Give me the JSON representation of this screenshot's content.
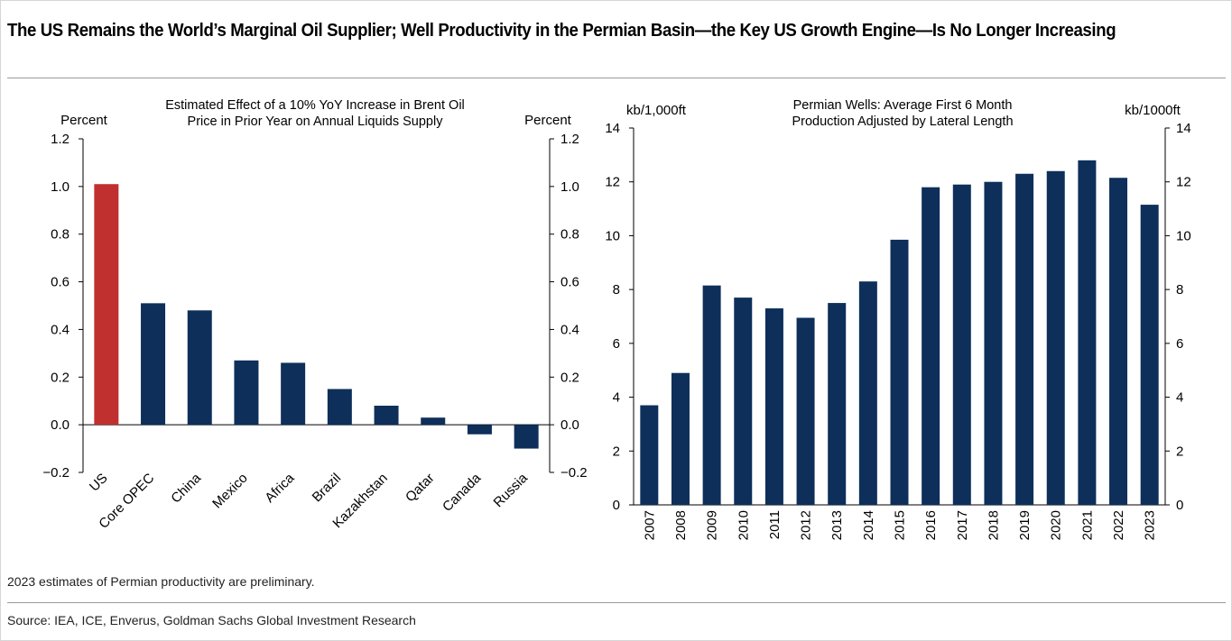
{
  "figure": {
    "title": "The US Remains the World’s Marginal Oil Supplier; Well Productivity in the Permian Basin—the Key US Growth Engine—Is No Longer Increasing",
    "note": "2023 estimates of Permian productivity are preliminary.",
    "source": "Source: IEA, ICE, Enverus, Goldman Sachs Global Investment Research"
  },
  "colors": {
    "highlight": "#c0302f",
    "bar": "#0d2f5a",
    "axis": "#000000",
    "text": "#000000"
  },
  "chart_data": [
    {
      "type": "bar",
      "title_lines": [
        "Estimated Effect of a 10% YoY Increase in Brent Oil",
        "Price in Prior Year on Annual Liquids Supply"
      ],
      "ylabel_left": "Percent",
      "ylabel_right": "Percent",
      "categories": [
        "US",
        "Core OPEC",
        "China",
        "Mexico",
        "Africa",
        "Brazil",
        "Kazakhstan",
        "Qatar",
        "Canada",
        "Russia"
      ],
      "values": [
        1.01,
        0.51,
        0.48,
        0.27,
        0.26,
        0.15,
        0.08,
        0.03,
        -0.04,
        -0.1
      ],
      "highlight_category": "US",
      "ylim": [
        -0.2,
        1.2
      ],
      "ticks": [
        "1.2",
        "1.0",
        "0.8",
        "0.6",
        "0.4",
        "0.2",
        "0.0",
        "−0.2"
      ],
      "tick_values": [
        1.2,
        1.0,
        0.8,
        0.6,
        0.4,
        0.2,
        0.0,
        -0.2
      ],
      "grid": false
    },
    {
      "type": "bar",
      "title_lines": [
        "Permian Wells: Average First 6 Month",
        "Production Adjusted by Lateral Length"
      ],
      "ylabel_left": "kb/1,000ft",
      "ylabel_right": "kb/1000ft",
      "categories": [
        "2007",
        "2008",
        "2009",
        "2010",
        "2011",
        "2012",
        "2013",
        "2014",
        "2015",
        "2016",
        "2017",
        "2018",
        "2019",
        "2020",
        "2021",
        "2022",
        "2023"
      ],
      "values": [
        3.7,
        4.9,
        8.15,
        7.7,
        7.3,
        6.95,
        7.5,
        8.3,
        9.85,
        11.8,
        11.9,
        12.0,
        12.3,
        12.4,
        12.8,
        12.15,
        11.15
      ],
      "ylim": [
        0,
        14
      ],
      "ticks": [
        "14",
        "12",
        "10",
        "8",
        "6",
        "4",
        "2",
        "0"
      ],
      "tick_values": [
        14,
        12,
        10,
        8,
        6,
        4,
        2,
        0
      ],
      "grid": false
    }
  ]
}
